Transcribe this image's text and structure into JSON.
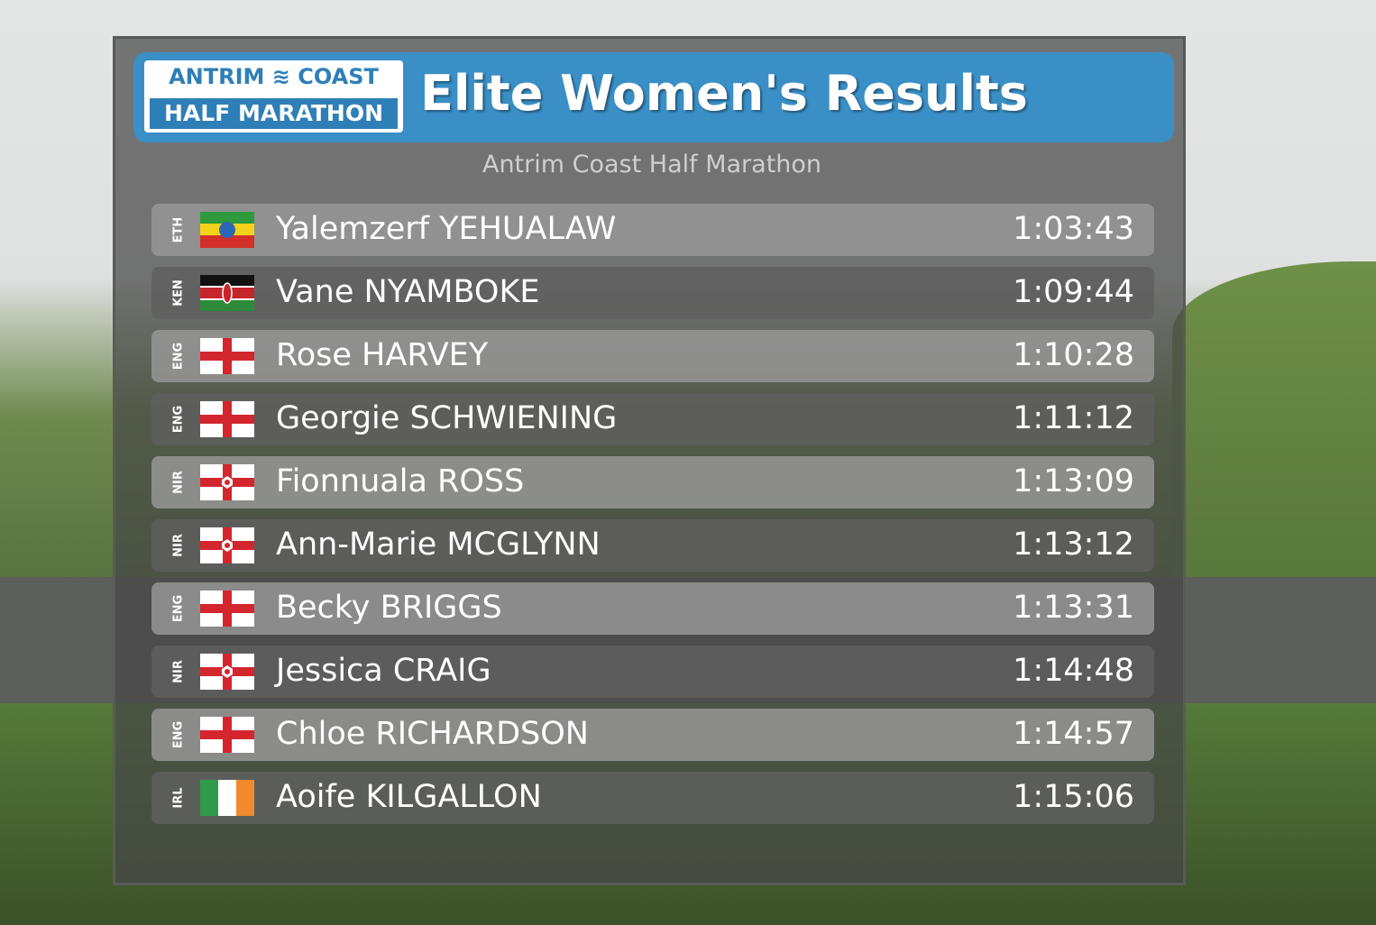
{
  "header": {
    "logo_line1_left": "ANTRIM",
    "logo_line1_right": "COAST",
    "logo_line2": "HALF MARATHON",
    "title": "Elite Women's Results"
  },
  "subtitle": "Antrim Coast Half Marathon",
  "results": [
    {
      "country": "ETH",
      "name": "Yalemzerf YEHUALAW",
      "time": "1:03:43"
    },
    {
      "country": "KEN",
      "name": "Vane NYAMBOKE",
      "time": "1:09:44"
    },
    {
      "country": "ENG",
      "name": "Rose HARVEY",
      "time": "1:10:28"
    },
    {
      "country": "ENG",
      "name": "Georgie SCHWIENING",
      "time": "1:11:12"
    },
    {
      "country": "NIR",
      "name": "Fionnuala ROSS",
      "time": "1:13:09"
    },
    {
      "country": "NIR",
      "name": "Ann-Marie MCGLYNN",
      "time": "1:13:12"
    },
    {
      "country": "ENG",
      "name": "Becky BRIGGS",
      "time": "1:13:31"
    },
    {
      "country": "NIR",
      "name": "Jessica CRAIG",
      "time": "1:14:48"
    },
    {
      "country": "ENG",
      "name": "Chloe RICHARDSON",
      "time": "1:14:57"
    },
    {
      "country": "IRL",
      "name": "Aoife KILGALLON",
      "time": "1:15:06"
    }
  ]
}
